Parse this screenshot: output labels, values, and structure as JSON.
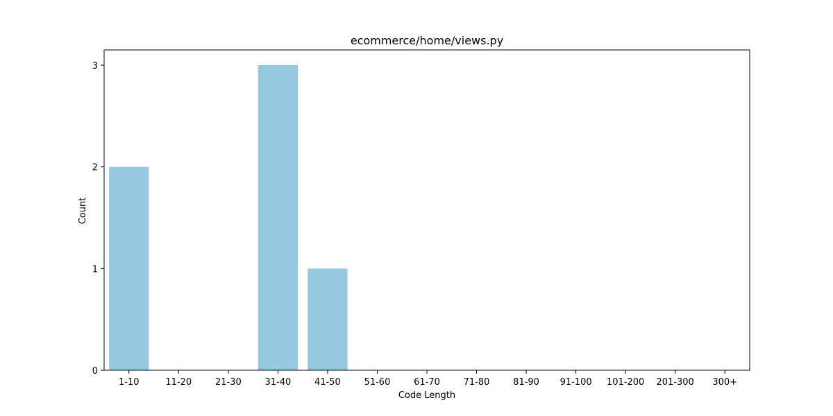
{
  "chart_data": {
    "type": "bar",
    "title": "ecommerce/home/views.py",
    "xlabel": "Code Length",
    "ylabel": "Count",
    "categories": [
      "1-10",
      "11-20",
      "21-30",
      "31-40",
      "41-50",
      "51-60",
      "61-70",
      "71-80",
      "81-90",
      "91-100",
      "101-200",
      "201-300",
      "300+"
    ],
    "values": [
      2,
      0,
      0,
      3,
      1,
      0,
      0,
      0,
      0,
      0,
      0,
      0,
      0
    ],
    "ylim": [
      0,
      3.15
    ],
    "yticks": [
      0,
      1,
      2,
      3
    ],
    "grid": false,
    "bar_color": "#95c9df",
    "axis_color": "#000000"
  }
}
